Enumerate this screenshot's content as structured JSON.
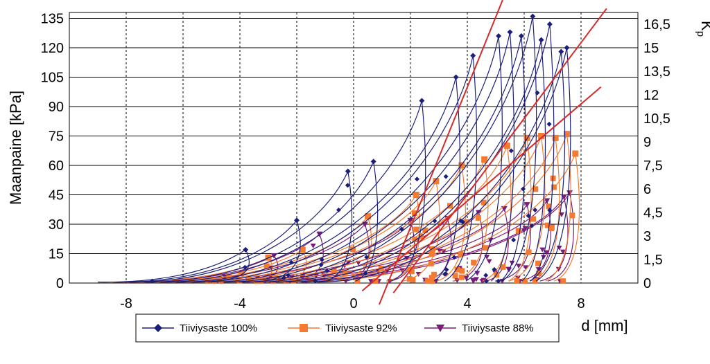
{
  "chart_data": {
    "type": "line",
    "xlabel": "d [mm]",
    "ylabel": "Maanpaine [kPa]",
    "y2label": "K",
    "y2label_sub": "p",
    "xlim": [
      -10,
      10
    ],
    "ylim": [
      0,
      138
    ],
    "y2lim": [
      0,
      17.25
    ],
    "x_ticks": [
      -8,
      -4,
      0,
      4,
      8
    ],
    "x_tick_labels": [
      "-8",
      "-4",
      "0",
      "4",
      "8"
    ],
    "x_grid": [
      -10,
      -8,
      -6,
      -4,
      -2,
      0,
      2,
      4,
      6,
      8
    ],
    "y_ticks": [
      0,
      15,
      30,
      45,
      60,
      75,
      90,
      105,
      120,
      135
    ],
    "y_tick_labels": [
      "0",
      "15",
      "30",
      "45",
      "60",
      "75",
      "90",
      "105",
      "120",
      "135"
    ],
    "y2_ticks": [
      0,
      1.5,
      3,
      4.5,
      6,
      7.5,
      9,
      10.5,
      12,
      13.5,
      15,
      16.5
    ],
    "y2_tick_labels": [
      "0",
      "1,5",
      "3",
      "4,5",
      "6",
      "7,5",
      "9",
      "10,5",
      "12",
      "13,5",
      "15",
      "16,5"
    ],
    "grid": true,
    "legend_position": "bottom",
    "series": [
      {
        "name": "Tiiviysaste 100%",
        "color": "#1b1f7a",
        "marker": "diamond",
        "peaks": [
          [
            -3.8,
            17
          ],
          [
            -2.0,
            32
          ],
          [
            -0.2,
            57
          ],
          [
            0.7,
            62
          ],
          [
            2.4,
            93
          ],
          [
            3.6,
            105
          ],
          [
            4.2,
            116
          ],
          [
            5.1,
            126
          ],
          [
            5.5,
            128
          ],
          [
            5.9,
            126
          ],
          [
            6.3,
            136
          ],
          [
            6.6,
            124
          ],
          [
            6.9,
            132
          ],
          [
            7.3,
            118
          ],
          [
            7.5,
            120
          ]
        ]
      },
      {
        "name": "Tiiviysaste 92%",
        "color": "#f47a30",
        "marker": "square",
        "peaks": [
          [
            -3.0,
            13
          ],
          [
            -1.8,
            17
          ],
          [
            0.5,
            34
          ],
          [
            2.2,
            45
          ],
          [
            2.9,
            52
          ],
          [
            3.8,
            60
          ],
          [
            4.6,
            63
          ],
          [
            5.4,
            70
          ],
          [
            6.1,
            74
          ],
          [
            6.6,
            75
          ],
          [
            7.1,
            74
          ],
          [
            7.5,
            76
          ],
          [
            7.8,
            66
          ]
        ]
      },
      {
        "name": "Tiiviysaste 88%",
        "color": "#7a1c78",
        "marker": "triangle-down",
        "peaks": [
          [
            -2.8,
            14
          ],
          [
            -1.2,
            25
          ],
          [
            0.4,
            30
          ],
          [
            2.0,
            32
          ],
          [
            3.3,
            33
          ],
          [
            4.4,
            36
          ],
          [
            5.3,
            38
          ],
          [
            6.1,
            40
          ],
          [
            6.8,
            42
          ],
          [
            7.4,
            44
          ],
          [
            7.6,
            46
          ]
        ]
      }
    ],
    "fit_lines": [
      {
        "color": "#d42a2a",
        "points": [
          [
            0.9,
            -11
          ],
          [
            5.4,
            150
          ]
        ]
      },
      {
        "color": "#d42a2a",
        "points": [
          [
            1.4,
            -5
          ],
          [
            8.9,
            140
          ]
        ]
      },
      {
        "color": "#d42a2a",
        "points": [
          [
            0.3,
            -4
          ],
          [
            8.7,
            100
          ]
        ]
      }
    ]
  }
}
